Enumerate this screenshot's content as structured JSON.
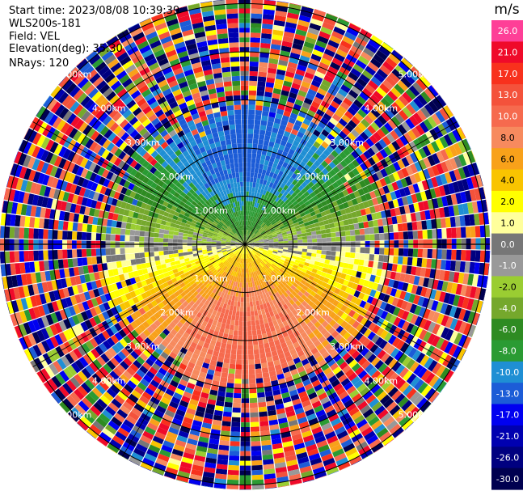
{
  "header": {
    "start_time": "Start time: 2023/08/08 10:39:39",
    "instrument": "WLS200s-181",
    "field": "Field: VEL",
    "elevation": "Elevation(deg): 35.30",
    "nrays": "NRays: 120"
  },
  "chart_data": {
    "type": "heatmap",
    "projection": "polar-ppi",
    "field": "VEL",
    "elevation_deg": 35.3,
    "n_rays": 120,
    "range_rings_km": [
      1.0,
      2.0,
      3.0,
      4.0,
      5.0
    ],
    "ring_labels": [
      "1.00km",
      "2.00km",
      "3.00km",
      "4.00km",
      "5.00km"
    ],
    "max_range_km": 5.2,
    "colorbar": {
      "unit": "m/s",
      "levels": [
        26.0,
        21.0,
        17.0,
        13.0,
        10.0,
        8.0,
        6.0,
        4.0,
        2.0,
        1.0,
        0.0,
        -1.0,
        -2.0,
        -4.0,
        -6.0,
        -8.0,
        -10.0,
        -13.0,
        -17.0,
        -21.0,
        -26.0,
        -30.0
      ],
      "labels": [
        "26.0",
        "21.0",
        "17.0",
        "13.0",
        "10.0",
        "8.0",
        "6.0",
        "4.0",
        "2.0",
        "1.0",
        "0.0",
        "-1.0",
        "-2.0",
        "-4.0",
        "-6.0",
        "-8.0",
        "-10.0",
        "-13.0",
        "-17.0",
        "-21.0",
        "-26.0",
        "-30.0"
      ],
      "colors": [
        "#fe3f97",
        "#ef0a2a",
        "#f8311d",
        "#f4523b",
        "#f66a4e",
        "#f78a5e",
        "#f8a11a",
        "#f9c400",
        "#ffff00",
        "#ffff9c",
        "#777777",
        "#999999",
        "#9acd32",
        "#75a82c",
        "#2e8b22",
        "#2a9b33",
        "#1f8fd4",
        "#1c5cd7",
        "#0000f0",
        "#0000b0",
        "#000080",
        "#000050"
      ]
    }
  }
}
